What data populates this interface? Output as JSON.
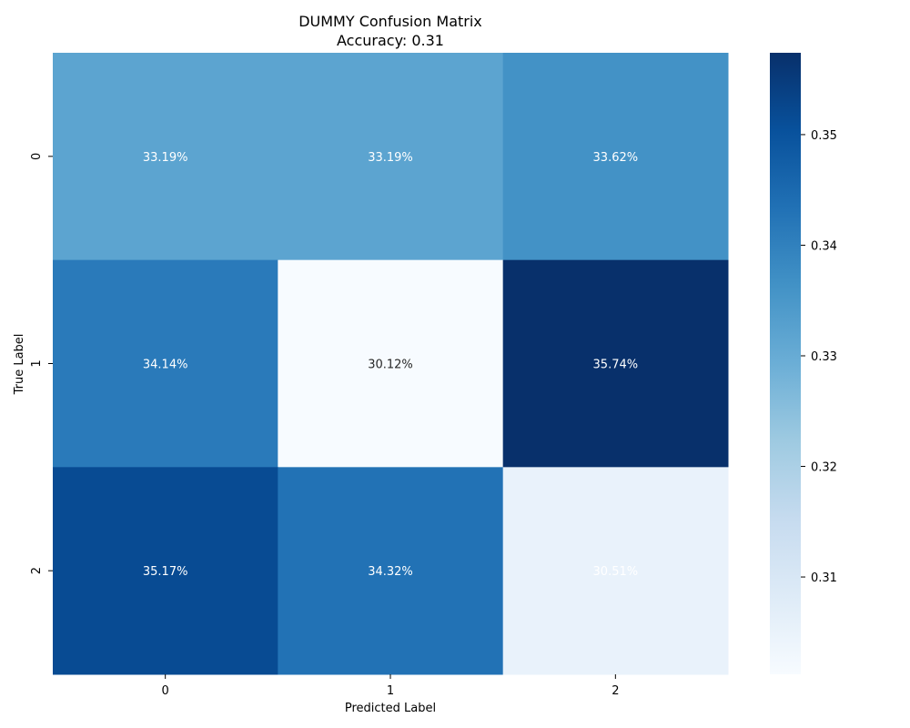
{
  "chart_data": {
    "type": "heatmap",
    "title": "DUMMY Confusion Matrix",
    "subtitle": "Accuracy: 0.31",
    "xlabel": "Predicted Label",
    "ylabel": "True Label",
    "x_categories": [
      "0",
      "1",
      "2"
    ],
    "y_categories": [
      "0",
      "1",
      "2"
    ],
    "values": [
      [
        0.3319,
        0.3319,
        0.3362
      ],
      [
        0.3414,
        0.3012,
        0.3574
      ],
      [
        0.3517,
        0.3432,
        0.3051
      ]
    ],
    "cell_labels": [
      [
        "33.19%",
        "33.19%",
        "33.62%"
      ],
      [
        "34.14%",
        "30.12%",
        "35.74%"
      ],
      [
        "35.17%",
        "34.32%",
        "30.51%"
      ]
    ],
    "colormap": "Blues",
    "colorbar": {
      "min": 0.3012,
      "max": 0.3574,
      "ticks": [
        0.31,
        0.32,
        0.33,
        0.34,
        0.35
      ],
      "tick_labels": [
        "0.31",
        "0.32",
        "0.33",
        "0.34",
        "0.35"
      ]
    }
  }
}
